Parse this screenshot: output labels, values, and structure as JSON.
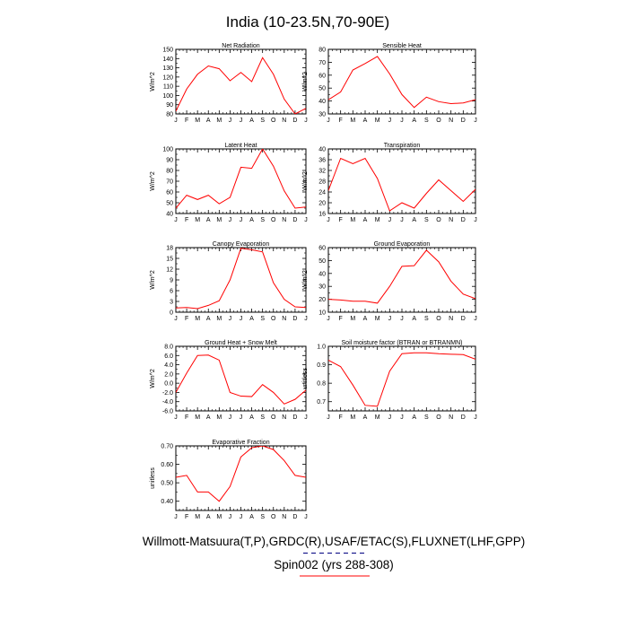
{
  "figure": {
    "title": "India (10-23.5N,70-90E)",
    "footer_line1": "Willmott-Matsuura(T,P),GRDC(R),USAF/ETAC(S),FLUXNET(LHF,GPP)",
    "footer_line2": "Spin002 (yrs 288-308)",
    "colors": {
      "model": "#ff0000",
      "observed": "#000080"
    }
  },
  "chart_data": [
    {
      "type": "line",
      "title": "Net Radiation",
      "ylabel": "W/m^2",
      "categories": [
        "J",
        "F",
        "M",
        "A",
        "M",
        "J",
        "J",
        "A",
        "S",
        "O",
        "N",
        "D",
        "J"
      ],
      "ylim": [
        80,
        150
      ],
      "yticks": [
        80,
        90,
        100,
        110,
        120,
        130,
        140,
        150
      ],
      "ytick_labels": [
        "80",
        "90",
        "100",
        "110",
        "120",
        "130",
        "140",
        "150"
      ],
      "series": [
        {
          "values": [
            83,
            107,
            123,
            132,
            129,
            116,
            125,
            115,
            141,
            123,
            96,
            80,
            86
          ]
        }
      ]
    },
    {
      "type": "line",
      "title": "Sensible Heat",
      "ylabel": "W/m^2",
      "categories": [
        "J",
        "F",
        "M",
        "A",
        "M",
        "J",
        "J",
        "A",
        "S",
        "O",
        "N",
        "D",
        "J"
      ],
      "ylim": [
        30,
        80
      ],
      "yticks": [
        30,
        40,
        50,
        60,
        70,
        80
      ],
      "ytick_labels": [
        "30",
        "40",
        "50",
        "60",
        "70",
        "80"
      ],
      "series": [
        {
          "values": [
            41,
            47,
            64,
            69,
            74.5,
            61,
            45,
            35,
            43,
            39.5,
            38,
            38.5,
            41
          ]
        }
      ]
    },
    {
      "type": "line",
      "title": "Latent Heat",
      "ylabel": "W/m^2",
      "categories": [
        "J",
        "F",
        "M",
        "A",
        "M",
        "J",
        "J",
        "A",
        "S",
        "O",
        "N",
        "D",
        "J"
      ],
      "ylim": [
        40,
        100
      ],
      "yticks": [
        40,
        50,
        60,
        70,
        80,
        90,
        100
      ],
      "ytick_labels": [
        "40",
        "50",
        "60",
        "70",
        "80",
        "90",
        "100"
      ],
      "series": [
        {
          "values": [
            45,
            57,
            53,
            57,
            49,
            55,
            83,
            82,
            100,
            84,
            61,
            45,
            46
          ]
        }
      ]
    },
    {
      "type": "line",
      "title": "Transpiration",
      "ylabel": "W/m^2",
      "categories": [
        "J",
        "F",
        "M",
        "A",
        "M",
        "J",
        "J",
        "A",
        "S",
        "O",
        "N",
        "D",
        "J"
      ],
      "ylim": [
        16,
        40
      ],
      "yticks": [
        16,
        20,
        24,
        28,
        32,
        36,
        40
      ],
      "ytick_labels": [
        "16",
        "20",
        "24",
        "28",
        "32",
        "36",
        "40"
      ],
      "series": [
        {
          "values": [
            24.5,
            36.5,
            34.5,
            36.5,
            29,
            17,
            20,
            18,
            23.5,
            28.5,
            24.5,
            20.5,
            25
          ]
        }
      ]
    },
    {
      "type": "line",
      "title": "Canopy Evaporation",
      "ylabel": "W/m^2",
      "categories": [
        "J",
        "F",
        "M",
        "A",
        "M",
        "J",
        "J",
        "A",
        "S",
        "O",
        "N",
        "D",
        "J"
      ],
      "ylim": [
        0,
        18
      ],
      "yticks": [
        0,
        3,
        6,
        9,
        12,
        15,
        18
      ],
      "ytick_labels": [
        "0",
        "3",
        "6",
        "9",
        "12",
        "15",
        "18"
      ],
      "series": [
        {
          "values": [
            1.2,
            1.3,
            1.0,
            1.9,
            3.2,
            9.0,
            17.8,
            17.4,
            16.8,
            8.2,
            3.6,
            1.5,
            1.3
          ]
        }
      ]
    },
    {
      "type": "line",
      "title": "Ground Evaporation",
      "ylabel": "W/m^2",
      "categories": [
        "J",
        "F",
        "M",
        "A",
        "M",
        "J",
        "J",
        "A",
        "S",
        "O",
        "N",
        "D",
        "J"
      ],
      "ylim": [
        10,
        60
      ],
      "yticks": [
        10,
        20,
        30,
        40,
        50,
        60
      ],
      "ytick_labels": [
        "10",
        "20",
        "30",
        "40",
        "50",
        "60"
      ],
      "series": [
        {
          "values": [
            20,
            19.5,
            18.5,
            18.5,
            17,
            30,
            45.5,
            46,
            58,
            49,
            34,
            24,
            20.5
          ]
        }
      ]
    },
    {
      "type": "line",
      "title": "Ground Heat + Snow Melt",
      "ylabel": "W/m^2",
      "categories": [
        "J",
        "F",
        "M",
        "A",
        "M",
        "J",
        "J",
        "A",
        "S",
        "O",
        "N",
        "D",
        "J"
      ],
      "ylim": [
        -6,
        8
      ],
      "yticks": [
        -6,
        -4,
        -2,
        0,
        2,
        4,
        6,
        8
      ],
      "ytick_labels": [
        "-6.0",
        "-4.0",
        "-2.0",
        "0.0",
        "2.0",
        "4.0",
        "6.0",
        "8.0"
      ],
      "series": [
        {
          "values": [
            -2.0,
            2.2,
            6.0,
            6.1,
            5.0,
            -2.0,
            -2.8,
            -2.9,
            -0.3,
            -2.0,
            -4.5,
            -3.5,
            -1.5
          ]
        }
      ]
    },
    {
      "type": "line",
      "title": "Soil moisture factor (BTRAN or BTRANMN)",
      "ylabel": "unitless",
      "categories": [
        "J",
        "F",
        "M",
        "A",
        "M",
        "J",
        "J",
        "A",
        "S",
        "O",
        "N",
        "D",
        "J"
      ],
      "ylim": [
        0.65,
        1.0
      ],
      "yticks": [
        0.7,
        0.8,
        0.9,
        1.0
      ],
      "ytick_labels": [
        "0.7",
        "0.8",
        "0.9",
        "1.0"
      ],
      "series": [
        {
          "values": [
            0.925,
            0.89,
            0.79,
            0.68,
            0.675,
            0.865,
            0.96,
            0.965,
            0.965,
            0.96,
            0.957,
            0.955,
            0.93
          ]
        }
      ]
    },
    {
      "type": "line",
      "title": "Evaporative Fraction",
      "ylabel": "unitless",
      "categories": [
        "J",
        "F",
        "M",
        "A",
        "M",
        "J",
        "J",
        "A",
        "S",
        "O",
        "N",
        "D",
        "J"
      ],
      "ylim": [
        0.35,
        0.7
      ],
      "yticks": [
        0.4,
        0.5,
        0.6,
        0.7
      ],
      "ytick_labels": [
        "0.40",
        "0.50",
        "0.60",
        "0.70"
      ],
      "series": [
        {
          "values": [
            0.53,
            0.54,
            0.45,
            0.45,
            0.4,
            0.48,
            0.64,
            0.69,
            0.7,
            0.68,
            0.62,
            0.54,
            0.53
          ]
        }
      ]
    }
  ]
}
